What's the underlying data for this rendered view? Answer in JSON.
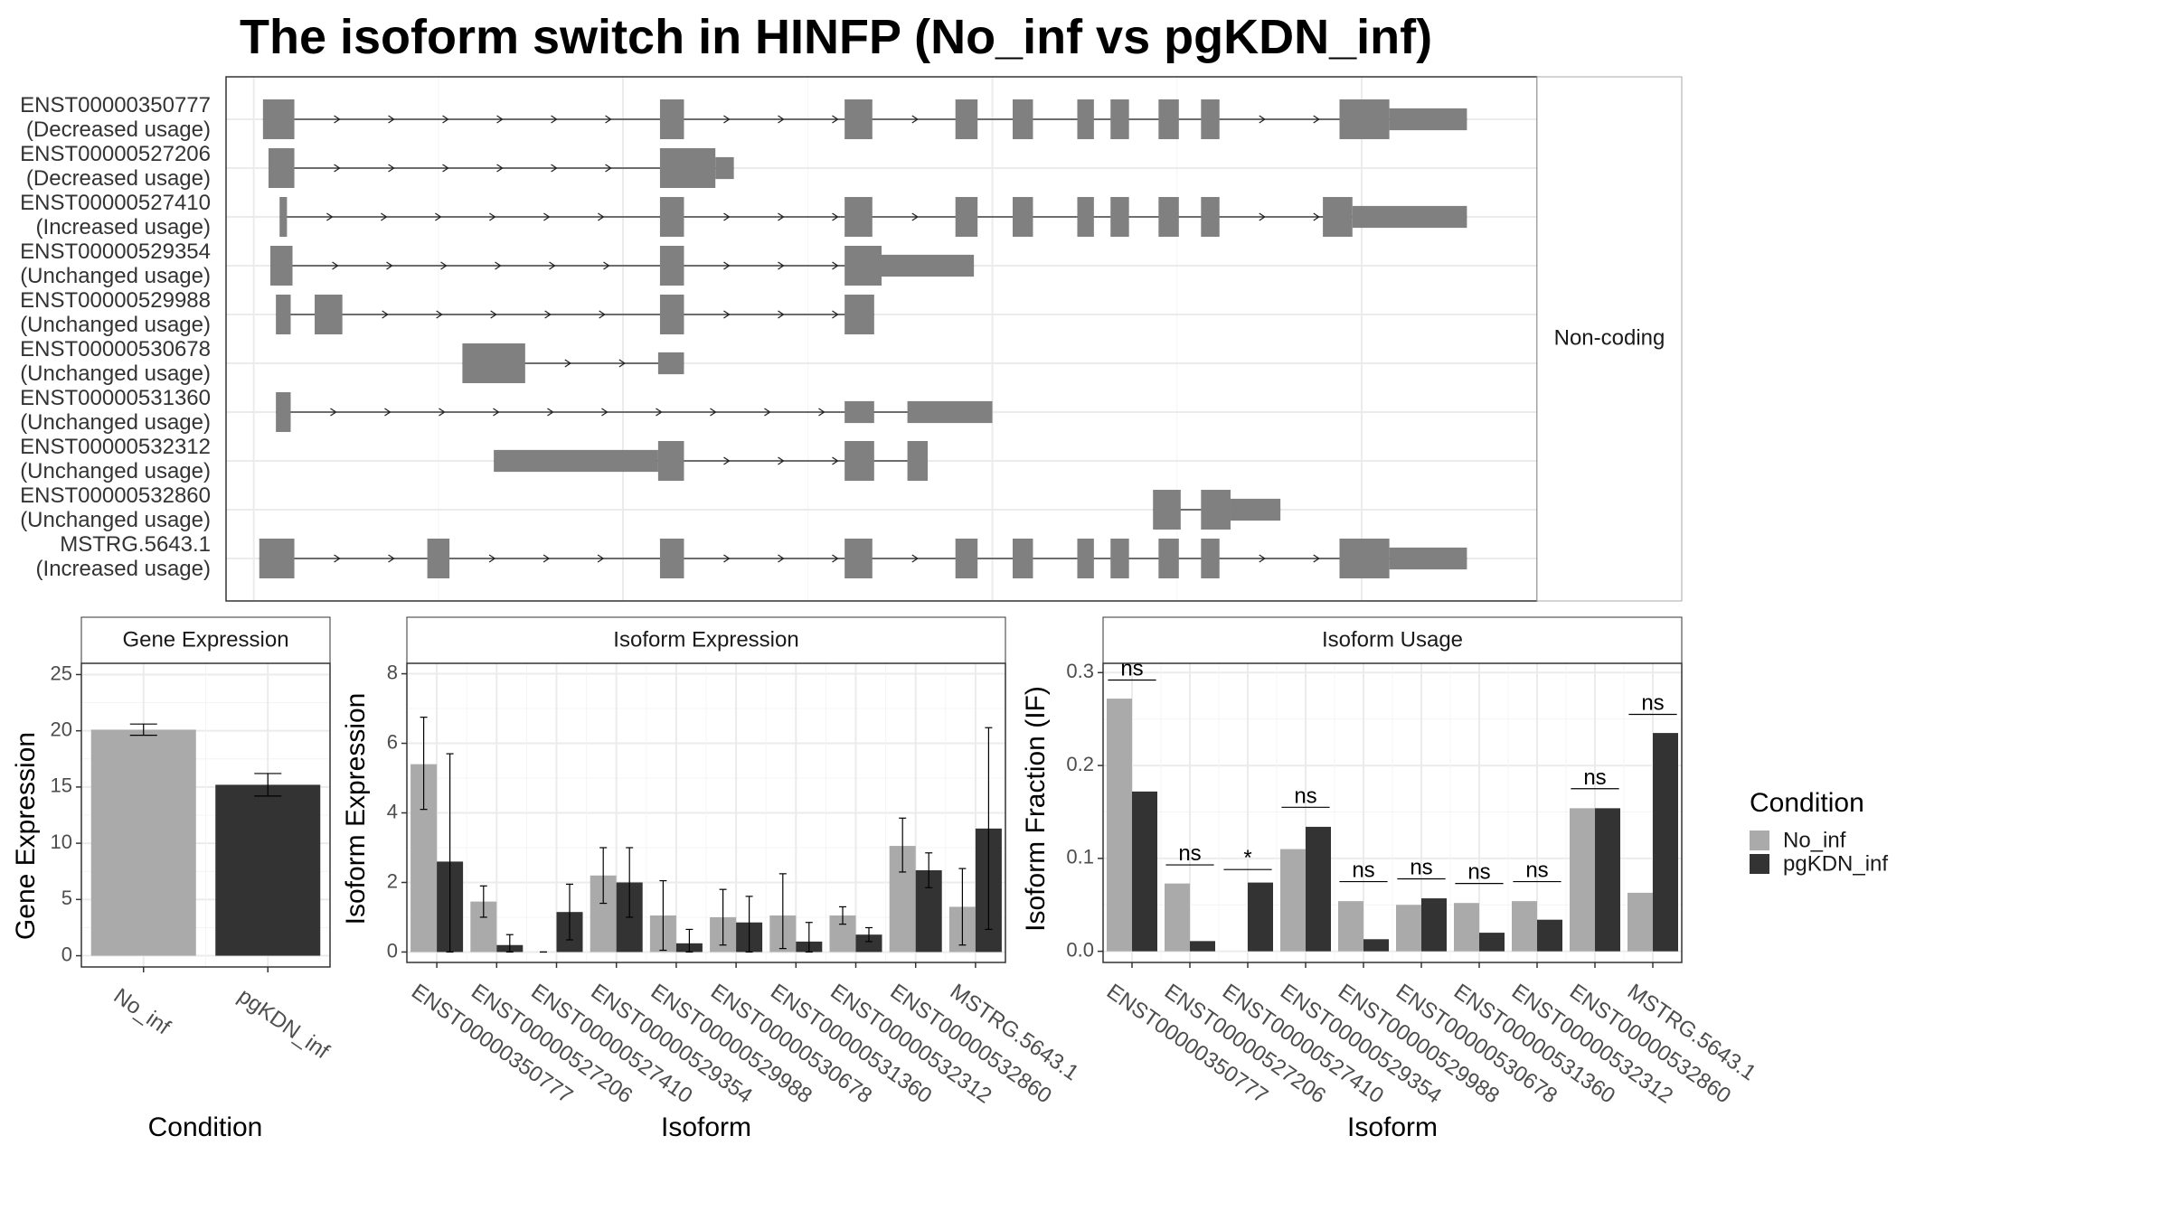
{
  "title": "The isoform switch in HINFP (No_inf vs pgKDN_inf)",
  "colors": {
    "no_inf": "#aaaaaa",
    "pgkdn_inf": "#333333",
    "exon": "#808080",
    "intron": "#222222",
    "grid": "#ebebeb",
    "strip": "#ffffff"
  },
  "chart_data": [
    {
      "type": "gene-structure",
      "panel_label": "Non-coding",
      "tracks": [
        {
          "id": "ENST00000350777",
          "usage": "(Decreased usage)",
          "segments": [
            [
              0.5,
              2.2,
              1
            ],
            [
              22,
              23.3,
              1
            ],
            [
              32,
              33.5,
              1
            ],
            [
              38,
              39.2,
              1
            ],
            [
              41.1,
              42.2,
              1
            ],
            [
              44.6,
              45.5,
              1
            ],
            [
              46.4,
              47.4,
              1
            ],
            [
              49,
              50.1,
              1
            ],
            [
              51.3,
              52.3,
              1
            ],
            [
              58.8,
              61.5,
              1
            ],
            [
              61.5,
              65.7,
              0.55
            ]
          ]
        },
        {
          "id": "ENST00000527206",
          "usage": "(Decreased usage)",
          "segments": [
            [
              0.8,
              2.2,
              1
            ],
            [
              22,
              25,
              1
            ],
            [
              25,
              26,
              0.55
            ]
          ]
        },
        {
          "id": "ENST00000527410",
          "usage": "(Increased usage)",
          "segments": [
            [
              1.4,
              1.8,
              1
            ],
            [
              22,
              23.3,
              1
            ],
            [
              32,
              33.5,
              1
            ],
            [
              38,
              39.2,
              1
            ],
            [
              41.1,
              42.2,
              1
            ],
            [
              44.6,
              45.5,
              1
            ],
            [
              46.4,
              47.4,
              1
            ],
            [
              49,
              50.1,
              1
            ],
            [
              51.3,
              52.3,
              1
            ],
            [
              57.9,
              59.5,
              1
            ],
            [
              59.5,
              65.7,
              0.55
            ]
          ]
        },
        {
          "id": "ENST00000529354",
          "usage": "(Unchanged usage)",
          "segments": [
            [
              0.9,
              2.1,
              1
            ],
            [
              22,
              23.3,
              1
            ],
            [
              32,
              34,
              1
            ],
            [
              34,
              39,
              0.55
            ]
          ]
        },
        {
          "id": "ENST00000529988",
          "usage": "(Unchanged usage)",
          "segments": [
            [
              1.2,
              2,
              1
            ],
            [
              3.3,
              4.8,
              1
            ],
            [
              22,
              23.3,
              1
            ],
            [
              32,
              33.6,
              1
            ]
          ]
        },
        {
          "id": "ENST00000530678",
          "usage": "(Unchanged usage)",
          "segments": [
            [
              11.3,
              14.7,
              1
            ],
            [
              21.9,
              23.3,
              0.55
            ]
          ]
        },
        {
          "id": "ENST00000531360",
          "usage": "(Unchanged usage)",
          "segments": [
            [
              1.2,
              2,
              1
            ],
            [
              32,
              33.6,
              0.55
            ],
            [
              35.4,
              40,
              0.55
            ]
          ]
        },
        {
          "id": "ENST00000532312",
          "usage": "(Unchanged usage)",
          "segments": [
            [
              13,
              21.9,
              0.55
            ],
            [
              21.9,
              23.3,
              1
            ],
            [
              32,
              33.6,
              1
            ],
            [
              35.4,
              36.5,
              1
            ]
          ]
        },
        {
          "id": "ENST00000532860",
          "usage": "(Unchanged usage)",
          "segments": [
            [
              48.7,
              50.2,
              1
            ],
            [
              51.3,
              52.9,
              1
            ],
            [
              52.9,
              55.6,
              0.55
            ]
          ]
        },
        {
          "id": "MSTRG.5643.1",
          "usage": "(Increased usage)",
          "segments": [
            [
              0.3,
              2.2,
              1
            ],
            [
              9.4,
              10.6,
              1
            ],
            [
              22,
              23.3,
              1
            ],
            [
              32,
              33.5,
              1
            ],
            [
              38,
              39.2,
              1
            ],
            [
              41.1,
              42.2,
              1
            ],
            [
              44.6,
              45.5,
              1
            ],
            [
              46.4,
              47.4,
              1
            ],
            [
              49,
              50.1,
              1
            ],
            [
              51.3,
              52.3,
              1
            ],
            [
              58.8,
              61.5,
              1
            ],
            [
              61.5,
              65.7,
              0.55
            ]
          ]
        }
      ]
    },
    {
      "type": "bar",
      "panel_title": "Gene Expression",
      "xlabel": "Condition",
      "ylabel": "Gene Expression",
      "categories": [
        "No_inf",
        "pgKDN_inf"
      ],
      "values": [
        20.1,
        15.2
      ],
      "errors": [
        [
          19.6,
          20.6
        ],
        [
          14.2,
          16.2
        ]
      ],
      "ylim": [
        -1,
        26
      ],
      "yticks": [
        "0",
        "5",
        "10",
        "15",
        "20",
        "25"
      ]
    },
    {
      "type": "bar",
      "panel_title": "Isoform Expression",
      "xlabel": "Isoform",
      "ylabel": "Isoform Expression",
      "categories": [
        "ENST00000350777",
        "ENST00000527206",
        "ENST00000527410",
        "ENST00000529354",
        "ENST00000529988",
        "ENST00000530678",
        "ENST00000531360",
        "ENST00000532312",
        "ENST00000532860",
        "MSTRG.5643.1"
      ],
      "ylim": [
        -0.3,
        8.3
      ],
      "yticks": [
        "0",
        "2",
        "4",
        "6",
        "8"
      ],
      "series": [
        {
          "name": "No_inf",
          "values": [
            5.4,
            1.45,
            0.0,
            2.2,
            1.05,
            1.0,
            1.05,
            1.05,
            3.05,
            1.3
          ],
          "errors": [
            [
              4.1,
              6.75
            ],
            [
              1.0,
              1.9
            ],
            [
              0.0,
              0.0
            ],
            [
              1.4,
              3.0
            ],
            [
              0.05,
              2.05
            ],
            [
              0.2,
              1.8
            ],
            [
              0.1,
              2.25
            ],
            [
              0.8,
              1.3
            ],
            [
              2.3,
              3.85
            ],
            [
              0.2,
              2.4
            ]
          ]
        },
        {
          "name": "pgKDN_inf",
          "values": [
            2.6,
            0.2,
            1.15,
            2.0,
            0.25,
            0.85,
            0.3,
            0.5,
            2.35,
            3.55
          ],
          "errors": [
            [
              0.0,
              5.7
            ],
            [
              0.0,
              0.5
            ],
            [
              0.35,
              1.95
            ],
            [
              1.0,
              3.0
            ],
            [
              0.0,
              0.65
            ],
            [
              0.0,
              1.6
            ],
            [
              0.0,
              0.85
            ],
            [
              0.3,
              0.7
            ],
            [
              1.85,
              2.85
            ],
            [
              0.65,
              6.45
            ]
          ]
        }
      ]
    },
    {
      "type": "bar",
      "panel_title": "Isoform Usage",
      "xlabel": "Isoform",
      "ylabel": "Isoform Fraction (IF)",
      "categories": [
        "ENST00000350777",
        "ENST00000527206",
        "ENST00000527410",
        "ENST00000529354",
        "ENST00000529988",
        "ENST00000530678",
        "ENST00000531360",
        "ENST00000532312",
        "ENST00000532860",
        "MSTRG.5643.1"
      ],
      "ylim": [
        -0.012,
        0.31
      ],
      "yticks": [
        "0.0",
        "0.1",
        "0.2",
        "0.3"
      ],
      "series": [
        {
          "name": "No_inf",
          "values": [
            0.272,
            0.073,
            0.0,
            0.11,
            0.054,
            0.05,
            0.052,
            0.054,
            0.154,
            0.063
          ]
        },
        {
          "name": "pgKDN_inf",
          "values": [
            0.172,
            0.011,
            0.074,
            0.134,
            0.013,
            0.057,
            0.02,
            0.034,
            0.154,
            0.235
          ]
        }
      ],
      "significance": [
        "ns",
        "ns",
        "*",
        "ns",
        "ns",
        "ns",
        "ns",
        "ns",
        "ns",
        "ns"
      ],
      "sig_y": [
        0.292,
        0.093,
        0.088,
        0.155,
        0.075,
        0.078,
        0.073,
        0.075,
        0.175,
        0.255
      ]
    }
  ],
  "legend": {
    "title": "Condition",
    "items": [
      {
        "label": "No_inf",
        "color": "#aaaaaa"
      },
      {
        "label": "pgKDN_inf",
        "color": "#333333"
      }
    ]
  }
}
